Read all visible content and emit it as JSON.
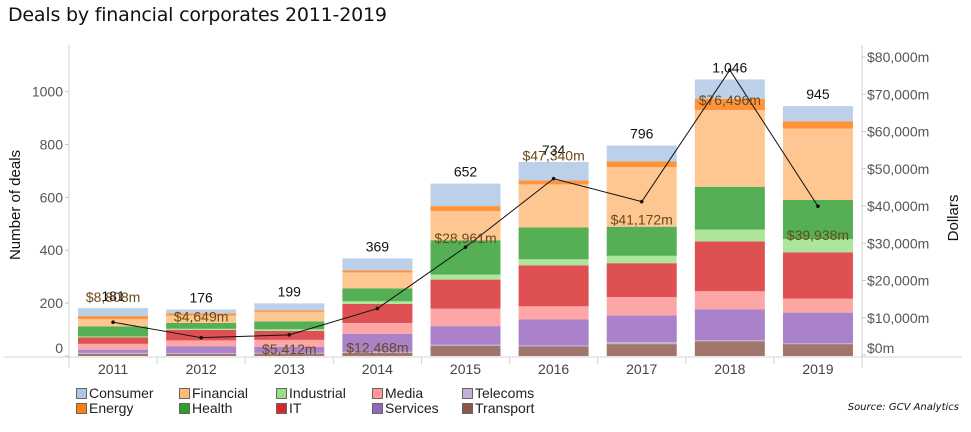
{
  "title": "Deals by financial corporates 2011-2019",
  "source": "Source: GCV Analytics",
  "chart_data": {
    "type": "bar",
    "title": "Deals by financial corporates 2011-2019",
    "xlabel": "",
    "ylabel": "Number of deals",
    "y2label": "Dollars",
    "ylim": [
      0,
      1130
    ],
    "y2lim": [
      0,
      80000
    ],
    "yticks": [
      "0",
      "200",
      "400",
      "600",
      "800",
      "1000"
    ],
    "yticks_values": [
      0,
      200,
      400,
      600,
      800,
      1000
    ],
    "y2ticks": [
      "$0m",
      "$10,000m",
      "$20,000m",
      "$30,000m",
      "$40,000m",
      "$50,000m",
      "$60,000m",
      "$70,000m",
      "$80,000m"
    ],
    "y2ticks_values": [
      0,
      10000,
      20000,
      30000,
      40000,
      50000,
      60000,
      70000,
      80000
    ],
    "categories": [
      "2011",
      "2012",
      "2013",
      "2014",
      "2015",
      "2016",
      "2017",
      "2018",
      "2019"
    ],
    "totals": [
      181,
      176,
      199,
      369,
      652,
      734,
      796,
      1046,
      945
    ],
    "total_labels": [
      "181",
      "176",
      "199",
      "369",
      "652",
      "734",
      "796",
      "1,046",
      "945"
    ],
    "series": [
      {
        "name": "Transport",
        "color": "#a0756c",
        "values": [
          8,
          8,
          9,
          12,
          39,
          36,
          45,
          56,
          45
        ]
      },
      {
        "name": "Telecoms",
        "color": "#c3b0d6",
        "values": [
          4,
          3,
          3,
          4,
          4,
          4,
          8,
          4,
          4
        ]
      },
      {
        "name": "Services",
        "color": "#a982c9",
        "values": [
          12,
          26,
          23,
          68,
          70,
          98,
          100,
          117,
          115
        ]
      },
      {
        "name": "Media",
        "color": "#fca7a6",
        "values": [
          22,
          22,
          26,
          41,
          66,
          50,
          70,
          68,
          53
        ]
      },
      {
        "name": "IT",
        "color": "#de5052",
        "values": [
          24,
          40,
          34,
          72,
          110,
          155,
          128,
          188,
          175
        ]
      },
      {
        "name": "Industrial",
        "color": "#ade59d",
        "values": [
          4,
          4,
          6,
          10,
          19,
          23,
          28,
          45,
          50
        ]
      },
      {
        "name": "Health",
        "color": "#55b055",
        "values": [
          38,
          22,
          30,
          49,
          130,
          120,
          110,
          162,
          148
        ]
      },
      {
        "name": "Financial",
        "color": "#fec690",
        "values": [
          28,
          28,
          36,
          60,
          110,
          163,
          225,
          290,
          270
        ]
      },
      {
        "name": "Energy",
        "color": "#fd933a",
        "values": [
          11,
          8,
          6,
          8,
          19,
          15,
          22,
          43,
          28
        ]
      },
      {
        "name": "Consumer",
        "color": "#bcd0ea",
        "values": [
          30,
          15,
          26,
          45,
          85,
          70,
          60,
          73,
          57
        ]
      }
    ],
    "line_series": {
      "name": "Dollars",
      "axis": "right",
      "values": [
        8808,
        4649,
        5412,
        12468,
        28961,
        47340,
        41172,
        76496,
        39938
      ],
      "labels": [
        "$8,808m",
        "$4,649m",
        "$5,412m",
        "$12,468m",
        "$28,961m",
        "$47,340m",
        "$41,172m",
        "$76,496m",
        "$39,938m"
      ]
    },
    "legend": {
      "placement": "bottom-left",
      "items": [
        {
          "name": "Consumer",
          "color": "#aec7e8"
        },
        {
          "name": "Financial",
          "color": "#ffbb78"
        },
        {
          "name": "Industrial",
          "color": "#98df8a"
        },
        {
          "name": "Media",
          "color": "#ff9896"
        },
        {
          "name": "Telecoms",
          "color": "#c5b0d5"
        },
        {
          "name": "Energy",
          "color": "#ff7f0e"
        },
        {
          "name": "Health",
          "color": "#2ca02c"
        },
        {
          "name": "IT",
          "color": "#d62728"
        },
        {
          "name": "Services",
          "color": "#9467bd"
        },
        {
          "name": "Transport",
          "color": "#8c564b"
        }
      ]
    },
    "grid": false
  }
}
